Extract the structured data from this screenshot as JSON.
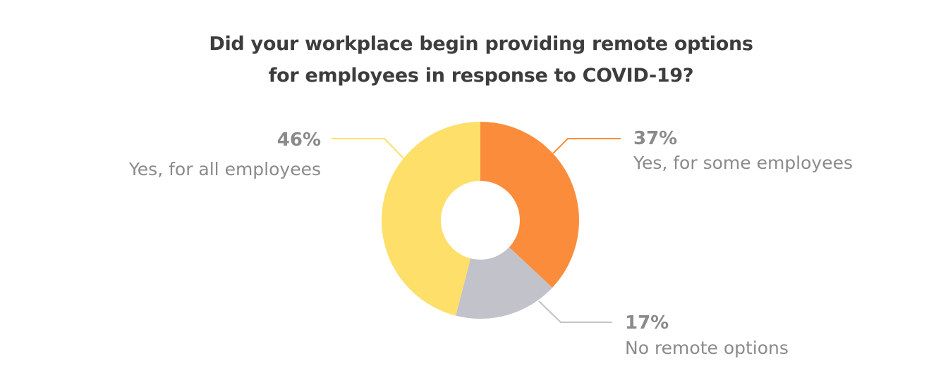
{
  "chart_data": {
    "type": "pie",
    "title_lines": [
      "Did your workplace begin providing remote options",
      "for employees in response to COVID-19?"
    ],
    "slices": [
      {
        "label": "Yes, for some employees",
        "value": 37,
        "value_label": "37%",
        "color": "#fb8c3b"
      },
      {
        "label": "No remote options",
        "value": 17,
        "value_label": "17%",
        "color": "#c2c2cb"
      },
      {
        "label": "Yes, for all employees",
        "value": 46,
        "value_label": "46%",
        "color": "#fedf6a"
      }
    ],
    "donut": true,
    "legend": "none"
  }
}
